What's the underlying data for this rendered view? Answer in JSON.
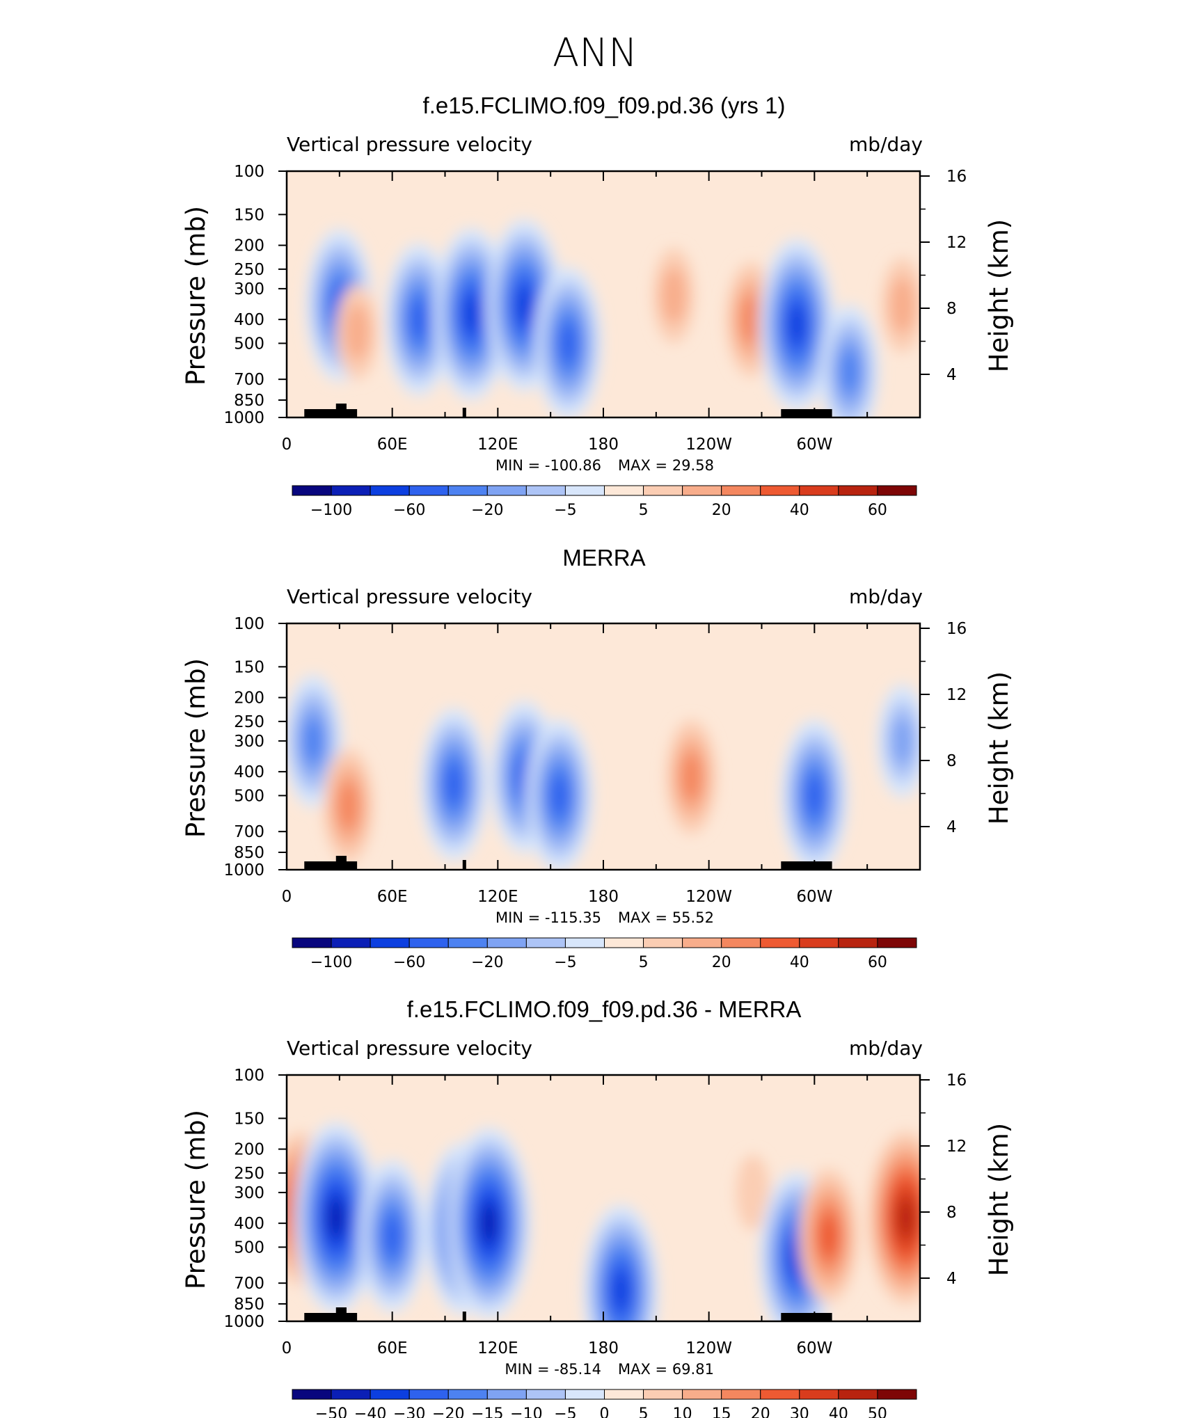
{
  "figure_title": "ANN",
  "chart_data": [
    {
      "type": "heatmap",
      "title": "f.e15.FCLIMO.f09_f09.pd.36 (yrs 1)",
      "subtitle_left": "Vertical pressure velocity",
      "subtitle_right": "mb/day",
      "ylabel": "Pressure (mb)",
      "ylabel_right": "Height (km)",
      "x_ticklabels": [
        "0",
        "60E",
        "120E",
        "180",
        "120W",
        "60W"
      ],
      "y_ticklabels": [
        "100",
        "150",
        "200",
        "250",
        "300",
        "400",
        "500",
        "700",
        "850",
        "1000"
      ],
      "y_right_ticklabels": [
        "16",
        "12",
        "8",
        "4"
      ],
      "xlim": [
        0,
        360
      ],
      "ylim": [
        1000,
        100
      ],
      "y_scale": "log",
      "min_label": "MIN = -100.86",
      "max_label": "MAX = 29.58",
      "min": -100.86,
      "max": 29.58,
      "colorbar_labels": [
        "-100",
        "-60",
        "-20",
        "-5",
        "5",
        "20",
        "40",
        "60"
      ],
      "contour_levels": [
        -120,
        -100,
        -80,
        -60,
        -40,
        -20,
        -10,
        -5,
        0,
        5,
        10,
        20,
        30,
        40,
        50,
        60,
        70
      ],
      "features": [
        {
          "lon": 30,
          "p": 350,
          "value": -55
        },
        {
          "lon": 40,
          "p": 450,
          "value": 15
        },
        {
          "lon": 75,
          "p": 400,
          "value": -40
        },
        {
          "lon": 105,
          "p": 380,
          "value": -70
        },
        {
          "lon": 135,
          "p": 350,
          "value": -60
        },
        {
          "lon": 160,
          "p": 500,
          "value": -40
        },
        {
          "lon": 220,
          "p": 320,
          "value": 15
        },
        {
          "lon": 264,
          "p": 400,
          "value": 25
        },
        {
          "lon": 290,
          "p": 420,
          "value": -60
        },
        {
          "lon": 320,
          "p": 650,
          "value": -35
        },
        {
          "lon": 350,
          "p": 350,
          "value": 20
        }
      ]
    },
    {
      "type": "heatmap",
      "title": "MERRA",
      "subtitle_left": "Vertical pressure velocity",
      "subtitle_right": "mb/day",
      "ylabel": "Pressure (mb)",
      "ylabel_right": "Height (km)",
      "x_ticklabels": [
        "0",
        "60E",
        "120E",
        "180",
        "120W",
        "60W"
      ],
      "y_ticklabels": [
        "100",
        "150",
        "200",
        "250",
        "300",
        "400",
        "500",
        "700",
        "850",
        "1000"
      ],
      "y_right_ticklabels": [
        "16",
        "12",
        "8",
        "4"
      ],
      "xlim": [
        0,
        360
      ],
      "ylim": [
        1000,
        100
      ],
      "y_scale": "log",
      "min_label": "MIN = -115.35",
      "max_label": "MAX = 55.52",
      "min": -115.35,
      "max": 55.52,
      "colorbar_labels": [
        "-100",
        "-60",
        "-20",
        "-5",
        "5",
        "20",
        "40",
        "60"
      ],
      "contour_levels": [
        -120,
        -100,
        -80,
        -60,
        -40,
        -20,
        -10,
        -5,
        0,
        5,
        10,
        20,
        30,
        40,
        50,
        60,
        70
      ],
      "features": [
        {
          "lon": 15,
          "p": 300,
          "value": -25
        },
        {
          "lon": 35,
          "p": 550,
          "value": 25
        },
        {
          "lon": 95,
          "p": 450,
          "value": -45
        },
        {
          "lon": 135,
          "p": 420,
          "value": -55
        },
        {
          "lon": 155,
          "p": 500,
          "value": -40
        },
        {
          "lon": 230,
          "p": 420,
          "value": 22
        },
        {
          "lon": 300,
          "p": 500,
          "value": -45
        },
        {
          "lon": 350,
          "p": 300,
          "value": -10
        }
      ]
    },
    {
      "type": "heatmap",
      "title": "f.e15.FCLIMO.f09_f09.pd.36 - MERRA",
      "subtitle_left": "Vertical pressure velocity",
      "subtitle_right": "mb/day",
      "ylabel": "Pressure (mb)",
      "ylabel_right": "Height (km)",
      "x_ticklabels": [
        "0",
        "60E",
        "120E",
        "180",
        "120W",
        "60W"
      ],
      "y_ticklabels": [
        "100",
        "150",
        "200",
        "250",
        "300",
        "400",
        "500",
        "700",
        "850",
        "1000"
      ],
      "y_right_ticklabels": [
        "16",
        "12",
        "8",
        "4"
      ],
      "xlim": [
        0,
        360
      ],
      "ylim": [
        1000,
        100
      ],
      "y_scale": "log",
      "min_label": "MIN = -85.14",
      "max_label": "MAX = 69.81",
      "min": -85.14,
      "max": 69.81,
      "colorbar_labels": [
        "-50",
        "-40",
        "-30",
        "-20",
        "-15",
        "-10",
        "-5",
        "0",
        "5",
        "10",
        "15",
        "20",
        "30",
        "40",
        "50"
      ],
      "contour_levels": [
        -60,
        -50,
        -40,
        -30,
        -20,
        -15,
        -10,
        -5,
        0,
        5,
        10,
        15,
        20,
        30,
        40,
        50,
        60
      ],
      "features": [
        {
          "lon": 8,
          "p": 350,
          "value": 40
        },
        {
          "lon": 28,
          "p": 380,
          "value": -40
        },
        {
          "lon": 60,
          "p": 450,
          "value": -25
        },
        {
          "lon": 100,
          "p": 420,
          "value": -30
        },
        {
          "lon": 115,
          "p": 400,
          "value": -40
        },
        {
          "lon": 190,
          "p": 750,
          "value": -30
        },
        {
          "lon": 265,
          "p": 300,
          "value": 8
        },
        {
          "lon": 290,
          "p": 550,
          "value": -35
        },
        {
          "lon": 308,
          "p": 450,
          "value": 30
        },
        {
          "lon": 352,
          "p": 380,
          "value": 45
        }
      ]
    }
  ],
  "colormap": [
    "#08067e",
    "#0b1fb6",
    "#0c3fe0",
    "#2e62ee",
    "#4d82f1",
    "#7fa3f3",
    "#adc4f6",
    "#d8e6fb",
    "#fde8d8",
    "#fbcdb3",
    "#f8ad8b",
    "#f4875f",
    "#ee5a32",
    "#d93c1d",
    "#b8230f",
    "#7e0606"
  ],
  "terrain_color": "#000000"
}
